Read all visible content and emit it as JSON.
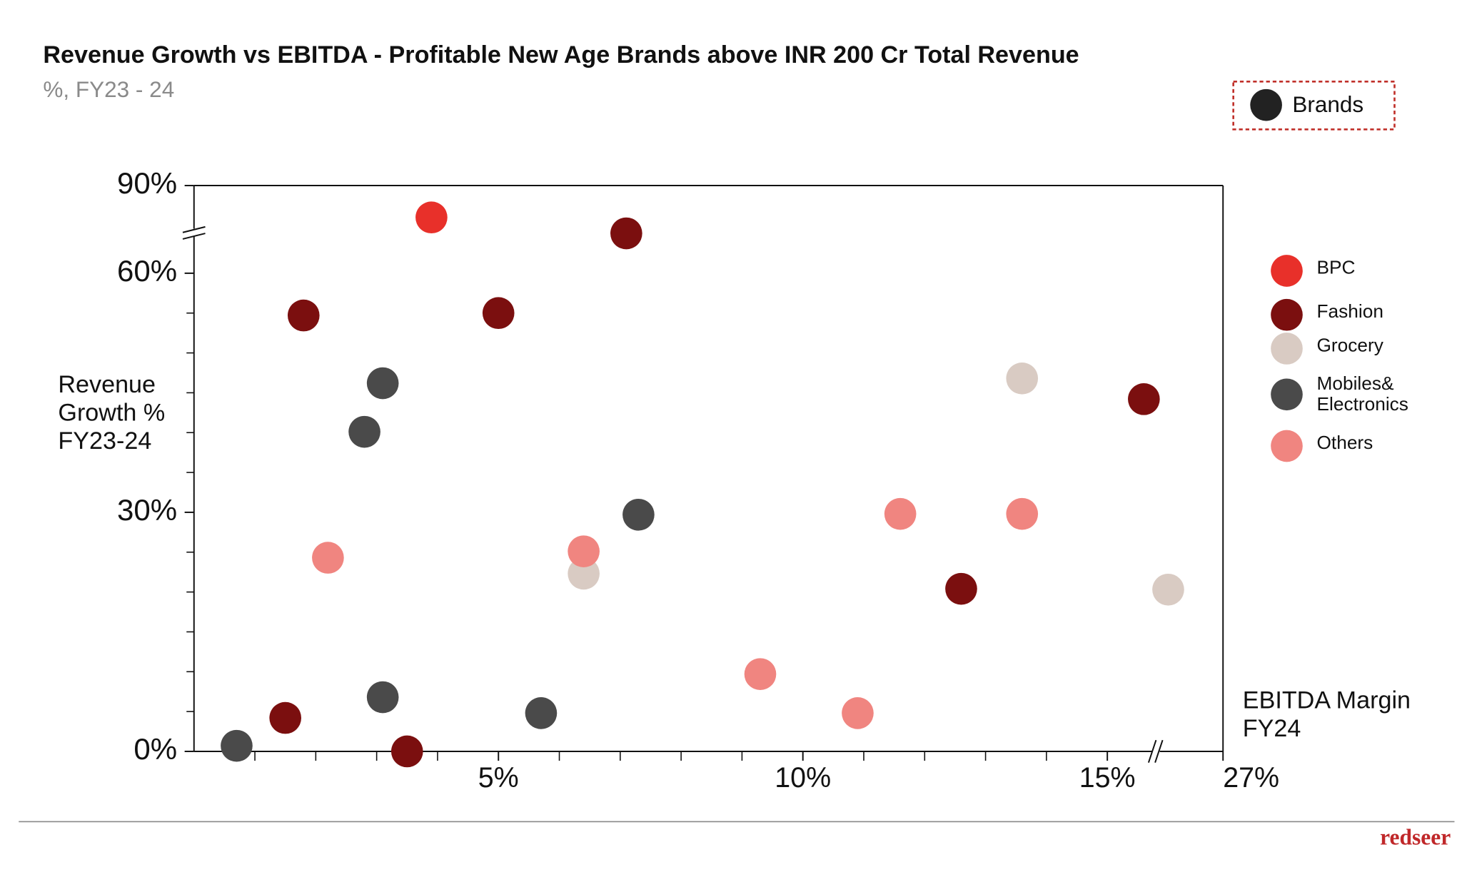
{
  "chart_data": {
    "type": "scatter",
    "title": "Revenue Growth vs EBITDA - Profitable New Age Brands above INR 200 Cr Total Revenue",
    "subtitle": "%, FY23 - 24",
    "annotation": "Brands",
    "x_label": "EBITDA Margin\nFY24",
    "y_label": "Revenue\nGrowth %\nFY23-24",
    "source": "redseer",
    "xlim": [
      0,
      27
    ],
    "ylim": [
      0,
      90
    ],
    "xbreak": [
      15.8,
      25.9
    ],
    "ybreak": [
      65,
      84
    ],
    "xticks": [
      {
        "value": 5,
        "label": "5%"
      },
      {
        "value": 10,
        "label": "10%"
      },
      {
        "value": 15,
        "label": "15%"
      },
      {
        "value": 27,
        "label": "27%"
      }
    ],
    "yticks": [
      {
        "value": 0,
        "label": "0%"
      },
      {
        "value": 30,
        "label": "30%"
      },
      {
        "value": 60,
        "label": "60%"
      },
      {
        "value": 90,
        "label": "90%"
      }
    ],
    "xminorticks": [
      1,
      2,
      3,
      4,
      6,
      7,
      8,
      9,
      11,
      12,
      13,
      14
    ],
    "yminorticks": [
      5,
      10,
      15,
      20,
      25,
      35,
      40,
      45,
      50,
      55
    ],
    "legend": "right",
    "series": [
      {
        "name": "BPC",
        "color": "#e8302a",
        "x": [
          3.9
        ],
        "y": [
          86
        ]
      },
      {
        "name": "Fashion",
        "color": "#7b0f0f",
        "x": [
          7.1,
          1.8,
          5.0,
          1.5,
          3.5,
          12.6,
          15.6
        ],
        "y": [
          65,
          54.7,
          55,
          4.2,
          0,
          20.4,
          44.2
        ]
      },
      {
        "name": "Grocery",
        "color": "#d9cbc3",
        "x": [
          13.6,
          6.4,
          26.1
        ],
        "y": [
          46.8,
          22.3,
          20.3
        ]
      },
      {
        "name": "Mobiles&\nElectronics",
        "color": "#4a4a4a",
        "x": [
          3.1,
          2.8,
          7.3,
          3.1,
          5.7,
          0.7
        ],
        "y": [
          46.2,
          40.1,
          29.7,
          6.8,
          4.8,
          0.7
        ]
      },
      {
        "name": "Others",
        "color": "#f08580",
        "x": [
          2.2,
          6.4,
          11.6,
          13.6,
          9.3,
          10.9
        ],
        "y": [
          24.3,
          25.1,
          29.8,
          29.8,
          9.7,
          4.8
        ]
      }
    ]
  }
}
